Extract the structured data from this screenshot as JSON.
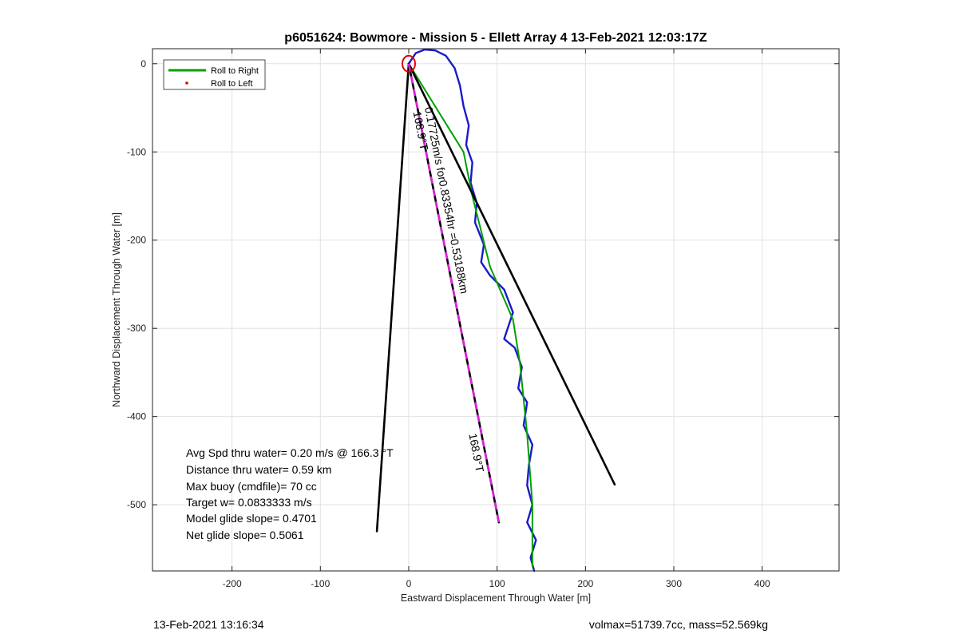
{
  "chart_data": {
    "type": "line",
    "title": "p6051624: Bowmore - Mission 5 - Ellett Array 4 13-Feb-2021 12:03:17Z",
    "xlabel": "Eastward Displacement Through Water [m]",
    "ylabel": "Northward Displacement Through Water [m]",
    "xlim": [
      -290,
      487
    ],
    "ylim": [
      -575,
      17
    ],
    "xticks": [
      -200,
      -100,
      0,
      100,
      200,
      300,
      400
    ],
    "yticks": [
      0,
      -100,
      -200,
      -300,
      -400,
      -500
    ],
    "grid": true,
    "legend": {
      "placement": "top-left",
      "entries": [
        {
          "label": "Roll to Right",
          "color": "#00a000",
          "style": "line"
        },
        {
          "label": "Roll to Left",
          "color": "#e00000",
          "style": "dot"
        }
      ]
    },
    "series": [
      {
        "color": "#1a1acc",
        "points": [
          [
            0,
            0
          ],
          [
            8,
            12
          ],
          [
            18,
            16
          ],
          [
            30,
            15
          ],
          [
            42,
            9
          ],
          [
            52,
            -5
          ],
          [
            58,
            -25
          ],
          [
            62,
            -48
          ],
          [
            68,
            -70
          ],
          [
            65,
            -92
          ],
          [
            72,
            -112
          ],
          [
            70,
            -135
          ],
          [
            77,
            -158
          ],
          [
            75,
            -180
          ],
          [
            85,
            -205
          ],
          [
            82,
            -225
          ],
          [
            92,
            -240
          ],
          [
            108,
            -256
          ],
          [
            118,
            -282
          ],
          [
            108,
            -312
          ],
          [
            120,
            -322
          ],
          [
            128,
            -344
          ],
          [
            124,
            -368
          ],
          [
            134,
            -384
          ],
          [
            130,
            -410
          ],
          [
            140,
            -432
          ],
          [
            136,
            -455
          ],
          [
            134,
            -478
          ],
          [
            140,
            -500
          ],
          [
            134,
            -520
          ],
          [
            144,
            -540
          ],
          [
            138,
            -560
          ],
          [
            142,
            -575
          ]
        ]
      },
      {
        "color": "#00a000",
        "points": [
          [
            0,
            0
          ],
          [
            62,
            -100
          ],
          [
            72,
            -150
          ],
          [
            92,
            -230
          ],
          [
            118,
            -290
          ],
          [
            126,
            -340
          ],
          [
            134,
            -420
          ],
          [
            140,
            -500
          ],
          [
            140,
            -570
          ]
        ]
      },
      {
        "color": "#000000",
        "points": [
          [
            0,
            0
          ],
          [
            -36,
            -530
          ]
        ]
      },
      {
        "color": "#000000",
        "points": [
          [
            0,
            0
          ],
          [
            233,
            -477
          ]
        ]
      },
      {
        "color": "#000000",
        "dash": "#e020e0",
        "points": [
          [
            0,
            0
          ],
          [
            102,
            -520
          ]
        ]
      }
    ],
    "markers": [
      {
        "name": "start-circle",
        "x": 0,
        "y": 0,
        "color": "#e00000"
      }
    ],
    "annotations": [
      {
        "text": "168.9°T",
        "x": 5,
        "y": -55,
        "rotation_deg": 79
      },
      {
        "text": "0.17725m/s for0.83354hr =0.53188km",
        "x": 18,
        "y": -50,
        "rotation_deg": 79
      },
      {
        "text": "168.9°T",
        "x": 68,
        "y": -420,
        "rotation_deg": 79
      }
    ]
  },
  "stats": [
    "Avg Spd thru water=  0.20 m/s @  166.3 °T",
    "Distance thru water=  0.59 km",
    "Max buoy (cmdfile)= 70 cc",
    "Target w= 0.0833333 m/s",
    "Model glide slope= 0.4701",
    "Net glide slope= 0.5061"
  ],
  "footer": {
    "left": "13-Feb-2021 13:16:34",
    "right": "volmax=51739.7cc, mass=52.569kg"
  }
}
